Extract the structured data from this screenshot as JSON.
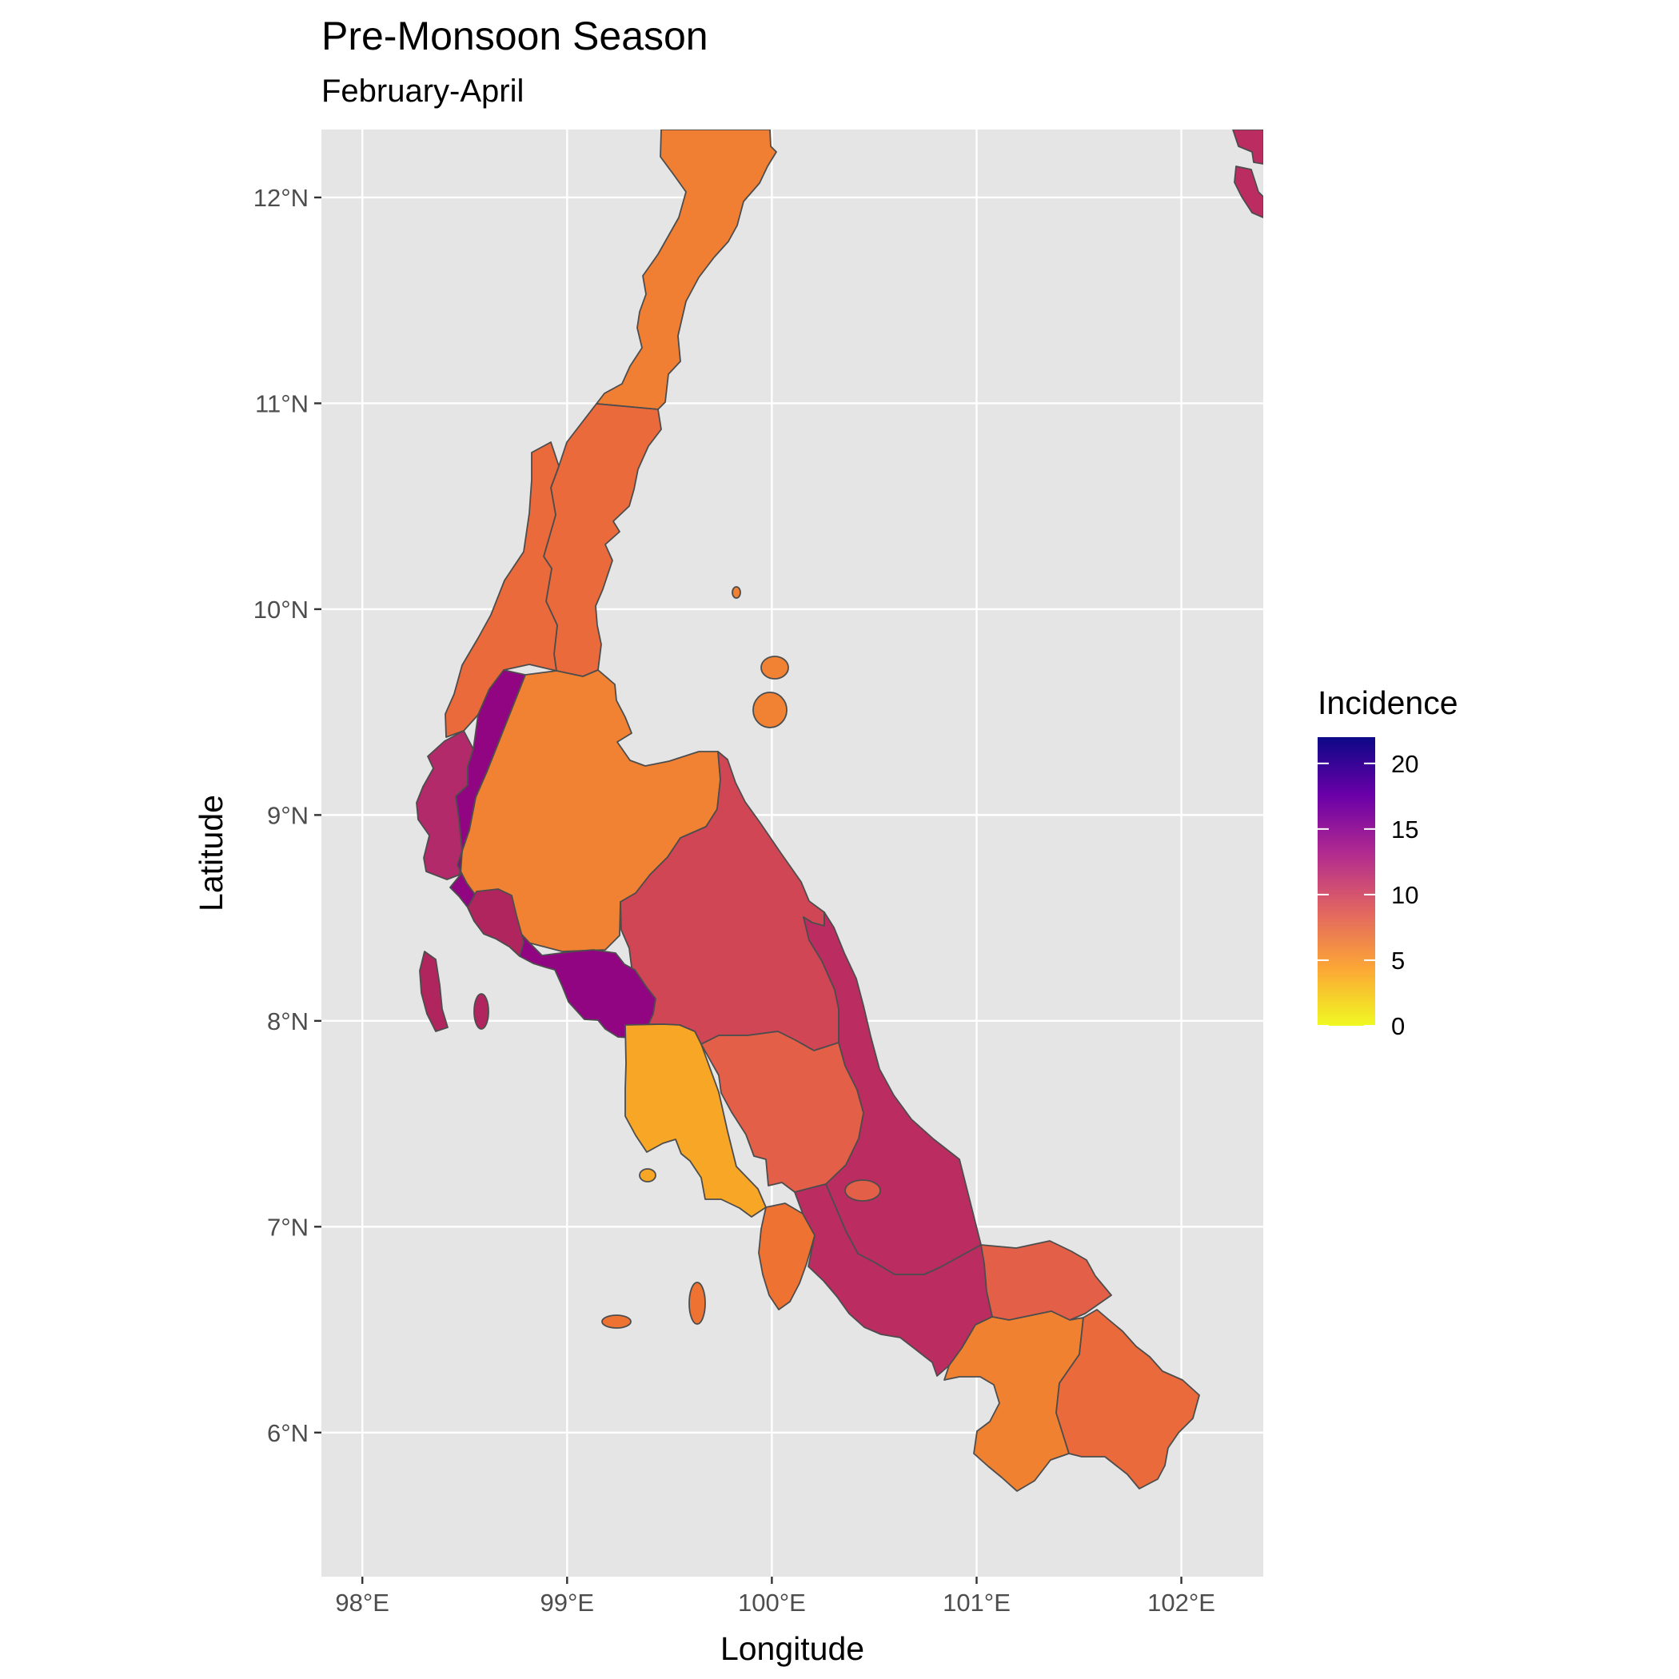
{
  "chart_data": {
    "type": "choropleth",
    "title": "Pre-Monsoon Season",
    "subtitle": "February-April",
    "xlabel": "Longitude",
    "ylabel": "Latitude",
    "x_ticks": [
      "98°E",
      "99°E",
      "100°E",
      "101°E",
      "102°E"
    ],
    "y_ticks": [
      "6°N",
      "7°N",
      "8°N",
      "9°N",
      "10°N",
      "11°N",
      "12°N"
    ],
    "xlim": [
      97.8,
      102.4
    ],
    "ylim": [
      5.3,
      12.33
    ],
    "legend": {
      "title": "Incidence",
      "position": "right",
      "range": [
        0,
        22
      ],
      "breaks": [
        0,
        5,
        10,
        15,
        20
      ],
      "labels": [
        "0",
        "5",
        "10",
        "15",
        "20"
      ],
      "palette": [
        "#f0f921",
        "#fca636",
        "#e16462",
        "#b12a90",
        "#6a00a8",
        "#0d0887"
      ]
    },
    "regions": [
      {
        "value": 6,
        "color": "#f07f34"
      },
      {
        "value": 7.5,
        "color": "#ea6a3b"
      },
      {
        "value": 7.5,
        "color": "#ea6a3b"
      },
      {
        "value": 6,
        "color": "#f07f34"
      },
      {
        "value": 12,
        "color": "#b22a6a"
      },
      {
        "value": 6,
        "color": "#f18233"
      },
      {
        "value": 12,
        "color": "#b1255f"
      },
      {
        "value": 16,
        "color": "#920582"
      },
      {
        "value": 10,
        "color": "#d14655"
      },
      {
        "value": 11.5,
        "color": "#b22a6a"
      },
      {
        "value": 3.5,
        "color": "#f8a625"
      },
      {
        "value": 8.5,
        "color": "#e35f48"
      },
      {
        "value": 11.5,
        "color": "#bb2c60"
      },
      {
        "value": 7,
        "color": "#ee7333"
      },
      {
        "value": 8.5,
        "color": "#e35f48"
      },
      {
        "value": 6,
        "color": "#f08130"
      },
      {
        "value": 7.5,
        "color": "#ea6a3b"
      },
      {
        "value": 11.5,
        "color": "#bb2c60"
      }
    ],
    "grid": true
  },
  "colors": {
    "panel_background": "#e5e5e5",
    "grid": "#ffffff",
    "region_border": "#4d4d4d"
  }
}
